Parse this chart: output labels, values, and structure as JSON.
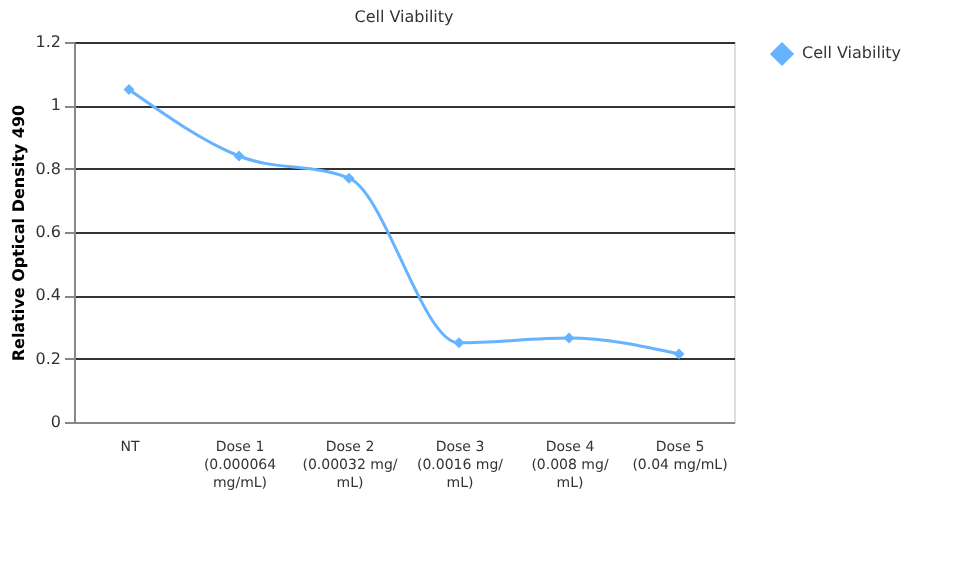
{
  "chart_data": {
    "type": "line",
    "title": "Cell Viability",
    "ylabel": "Relative Optical Density 490",
    "categories": [
      "NT",
      "Dose 1\n(0.000064\nmg/mL)",
      "Dose 2\n(0.00032 mg/\nmL)",
      "Dose 3\n(0.0016 mg/\nmL)",
      "Dose 4\n(0.008 mg/\nmL)",
      "Dose 5\n(0.04 mg/mL)"
    ],
    "series": [
      {
        "name": "Cell Viability",
        "color": "#66b3ff",
        "values": [
          1.05,
          0.84,
          0.77,
          0.25,
          0.265,
          0.215
        ]
      }
    ],
    "ylim": [
      0,
      1.2
    ],
    "yticks": [
      0,
      0.2,
      0.4,
      0.6,
      0.8,
      1,
      1.2
    ],
    "grid": "y",
    "legend": "right",
    "marker": "diamond",
    "line_style": "solid"
  }
}
